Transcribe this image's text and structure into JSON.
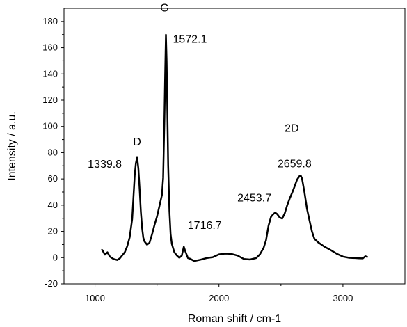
{
  "chart_data": {
    "type": "line",
    "xlabel": "Roman shift / cm-1",
    "ylabel": "Intensity / a.u.",
    "xlim": [
      750,
      3500
    ],
    "ylim": [
      -20,
      190
    ],
    "x_ticks": [
      1000,
      2000,
      3000
    ],
    "y_ticks": [
      -20,
      0,
      20,
      40,
      60,
      80,
      100,
      120,
      140,
      160,
      180
    ],
    "grid": false,
    "series": [
      {
        "x": [
          1050,
          1060,
          1080,
          1100,
          1120,
          1150,
          1180,
          1200,
          1220,
          1240,
          1260,
          1280,
          1300,
          1310,
          1320,
          1330,
          1339.8,
          1350,
          1360,
          1370,
          1380,
          1390,
          1400,
          1420,
          1440,
          1460,
          1480,
          1500,
          1520,
          1540,
          1550,
          1560,
          1566,
          1572.1,
          1578,
          1584,
          1590,
          1600,
          1610,
          1620,
          1640,
          1660,
          1680,
          1700,
          1716.7,
          1730,
          1750,
          1770,
          1800,
          1850,
          1900,
          1950,
          2000,
          2050,
          2100,
          2150,
          2200,
          2250,
          2300,
          2330,
          2360,
          2380,
          2400,
          2420,
          2440,
          2453.7,
          2470,
          2490,
          2510,
          2530,
          2550,
          2570,
          2590,
          2610,
          2630,
          2650,
          2659.8,
          2670,
          2690,
          2710,
          2730,
          2750,
          2770,
          2800,
          2850,
          2900,
          2950,
          3000,
          3050,
          3100,
          3130,
          3160,
          3180,
          3200
        ],
        "y": [
          7,
          5,
          3,
          4,
          1,
          -1,
          -2,
          0,
          2,
          4,
          8,
          15,
          30,
          45,
          62,
          72,
          76,
          68,
          52,
          35,
          22,
          15,
          12,
          10,
          12,
          18,
          25,
          32,
          40,
          48,
          60,
          105,
          140,
          170,
          150,
          110,
          70,
          35,
          18,
          10,
          4,
          1,
          0,
          2,
          8,
          4,
          0,
          -1,
          -2,
          -1,
          0,
          1,
          2,
          3,
          3,
          1,
          -1,
          -1,
          0,
          3,
          8,
          14,
          24,
          32,
          34,
          35,
          33,
          31,
          30,
          34,
          40,
          45,
          50,
          55,
          60,
          62,
          63,
          60,
          50,
          38,
          28,
          20,
          15,
          12,
          9,
          6,
          3,
          1,
          0,
          -1,
          -1,
          0,
          1,
          0
        ]
      }
    ],
    "annotations": [
      {
        "text": "1572.1",
        "x": 1572.1,
        "y": 170
      },
      {
        "text": "G",
        "x": 1572.1,
        "y": 170
      },
      {
        "text": "1339.8",
        "x": 1339.8,
        "y": 76
      },
      {
        "text": "D",
        "x": 1339.8,
        "y": 76
      },
      {
        "text": "1716.7",
        "x": 1716.7,
        "y": 8
      },
      {
        "text": "2453.7",
        "x": 2453.7,
        "y": 35
      },
      {
        "text": "2D",
        "x": 2659.8,
        "y": 63
      },
      {
        "text": "2659.8",
        "x": 2659.8,
        "y": 63
      }
    ]
  }
}
